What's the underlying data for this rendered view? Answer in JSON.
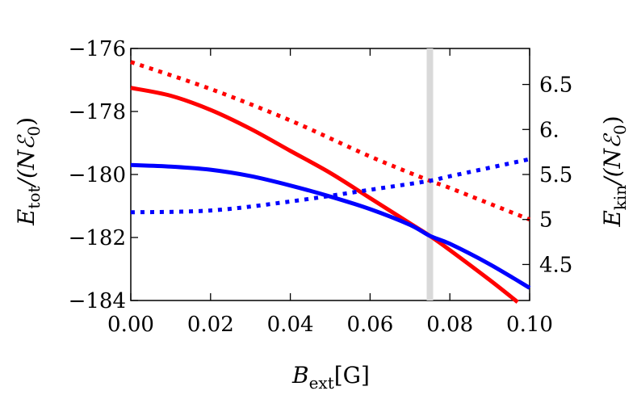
{
  "chart_data": {
    "type": "line",
    "xlabel": {
      "main": "B",
      "sub": "ext",
      "rest": "[G]"
    },
    "ylabel_left": {
      "main": "E",
      "sub": "tot",
      "rest": "/(Nℰ",
      "sub2": "0",
      "close": ")"
    },
    "ylabel_right": {
      "main": "E",
      "sub": "kin",
      "rest": "/(Nℰ",
      "sub2": "0",
      "close": ")"
    },
    "xlim": [
      0.0,
      0.1
    ],
    "ylim_left": [
      -184,
      -176
    ],
    "ylim_right": [
      4.1,
      6.9
    ],
    "x_ticks": [
      "0.00",
      "0.02",
      "0.04",
      "0.06",
      "0.08",
      "0.10"
    ],
    "x_tick_values": [
      0.0,
      0.02,
      0.04,
      0.06,
      0.08,
      0.1
    ],
    "y_ticks_left": [
      "−176",
      "−178",
      "−180",
      "−182",
      "−184"
    ],
    "y_tick_values_left": [
      -176,
      -178,
      -180,
      -182,
      -184
    ],
    "y_ticks_right": [
      "6.5",
      "6.",
      "5.5",
      "5",
      "4.5"
    ],
    "y_tick_values_right": [
      6.5,
      6.0,
      5.5,
      5.0,
      4.5
    ],
    "vertical_marker": {
      "x": 0.075,
      "color": "#d9d9d9"
    },
    "series": [
      {
        "axis": "left",
        "color": "#ff0000",
        "style": "solid",
        "x": [
          0.0,
          0.01,
          0.02,
          0.03,
          0.04,
          0.05,
          0.06,
          0.07,
          0.075,
          0.08,
          0.09,
          0.097
        ],
        "y": [
          -177.25,
          -177.5,
          -177.95,
          -178.55,
          -179.25,
          -179.95,
          -180.75,
          -181.55,
          -181.95,
          -182.4,
          -183.35,
          -184.05
        ]
      },
      {
        "axis": "left",
        "color": "#0000ff",
        "style": "solid",
        "x": [
          0.0,
          0.01,
          0.02,
          0.03,
          0.04,
          0.05,
          0.06,
          0.07,
          0.075,
          0.08,
          0.09,
          0.1
        ],
        "y": [
          -179.7,
          -179.75,
          -179.85,
          -180.05,
          -180.35,
          -180.7,
          -181.1,
          -181.6,
          -181.95,
          -182.2,
          -182.85,
          -183.6
        ]
      },
      {
        "axis": "right",
        "color": "#ff0000",
        "style": "dotted",
        "x": [
          0.0,
          0.02,
          0.04,
          0.06,
          0.075,
          0.08,
          0.1
        ],
        "y": [
          6.75,
          6.45,
          6.1,
          5.7,
          5.43,
          5.35,
          5.0
        ]
      },
      {
        "axis": "right",
        "color": "#0000ff",
        "style": "dotted",
        "x": [
          0.0,
          0.02,
          0.04,
          0.06,
          0.075,
          0.08,
          0.1
        ],
        "y": [
          5.08,
          5.1,
          5.2,
          5.33,
          5.43,
          5.48,
          5.67
        ]
      }
    ]
  }
}
